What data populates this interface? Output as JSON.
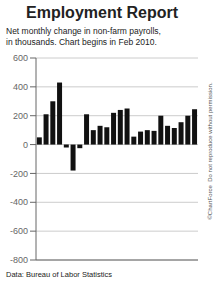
{
  "chart_data": {
    "type": "bar",
    "title": "Employment Report",
    "subtitle": "Net monthly change in non-farm payrolls,\nin thousands. Chart begins in Feb 2010.",
    "footer": "Data: Bureau of Labor Statistics",
    "watermark": "©ChartForce  Do not reproduce without permission.",
    "categories": [
      null,
      null,
      null,
      null,
      null,
      null,
      null,
      null,
      null,
      null,
      null,
      null,
      null,
      null,
      null,
      null,
      null,
      null,
      null,
      null,
      null,
      null,
      null,
      null
    ],
    "values": [
      50,
      210,
      300,
      430,
      -20,
      -180,
      -25,
      210,
      100,
      130,
      120,
      220,
      240,
      250,
      55,
      90,
      100,
      95,
      200,
      130,
      115,
      155,
      200,
      245
    ],
    "color": "#111111",
    "ylim": [
      -800,
      600
    ],
    "yticks": [
      -800,
      -600,
      -400,
      -200,
      0,
      200,
      400,
      600
    ],
    "grid": true,
    "tick_labels": "y"
  }
}
